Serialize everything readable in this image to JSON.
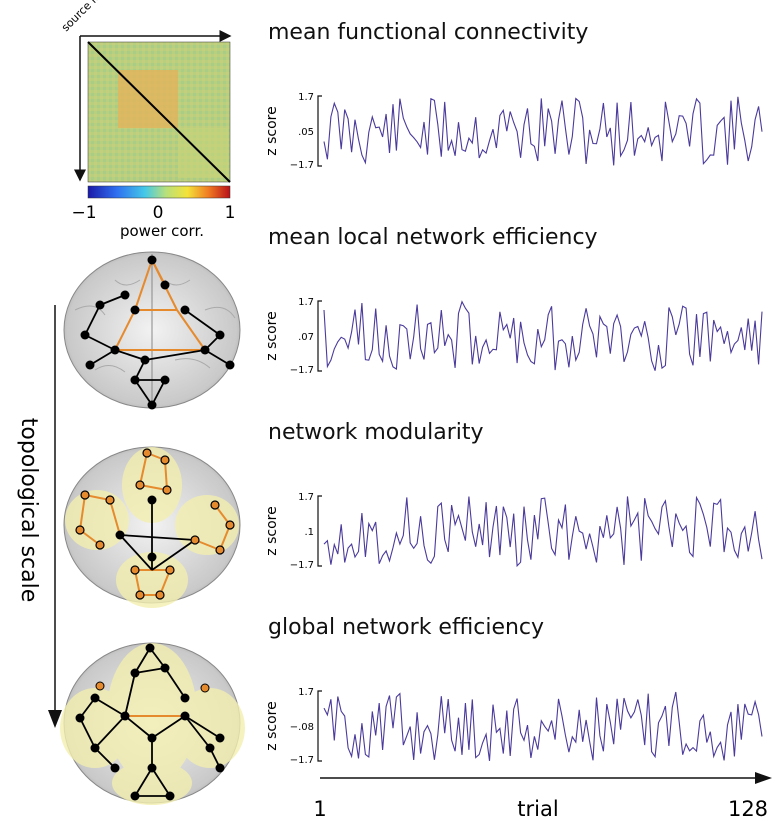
{
  "matrix": {
    "axis_label": "source locations",
    "colorbar": {
      "ticks": [
        "−1",
        "0",
        "1"
      ],
      "label": "power corr."
    },
    "colors": {
      "background": "#b3cf7a",
      "block": "#e0b75f",
      "diagonal": "#000000"
    }
  },
  "vertical_axis": {
    "label": "topological scale"
  },
  "panels": [
    {
      "title": "mean functional connectivity",
      "ylabel": "z score",
      "ticks": [
        "1.7",
        ".05",
        "−1.7"
      ]
    },
    {
      "title": "mean local network efficiency",
      "ylabel": "z score",
      "ticks": [
        "1.7",
        ".07",
        "−1.7"
      ]
    },
    {
      "title": "network modularity",
      "ylabel": "z score",
      "ticks": [
        "1.7",
        ".1",
        "−1.7"
      ]
    },
    {
      "title": "global network efficiency",
      "ylabel": "z score",
      "ticks": [
        "1.7",
        "−.08",
        "−1.7"
      ]
    }
  ],
  "trial_axis": {
    "label": "trial",
    "start": "1",
    "end": "128"
  },
  "colors": {
    "series": "#4b3a9c",
    "black_edge": "#000000",
    "orange_edge": "#e68a2e",
    "module_fill": "#f3efb0"
  },
  "chart_data": [
    {
      "type": "line",
      "title": "mean functional connectivity",
      "ylabel": "z score",
      "xlabel": "trial",
      "ylim": [
        -1.7,
        1.7
      ],
      "xlim": [
        1,
        128
      ],
      "mean": 0.05
    },
    {
      "type": "line",
      "title": "mean local network efficiency",
      "ylabel": "z score",
      "xlabel": "trial",
      "ylim": [
        -1.7,
        1.7
      ],
      "xlim": [
        1,
        128
      ],
      "mean": 0.07
    },
    {
      "type": "line",
      "title": "network modularity",
      "ylabel": "z score",
      "xlabel": "trial",
      "ylim": [
        -1.7,
        1.7
      ],
      "xlim": [
        1,
        128
      ],
      "mean": 0.1
    },
    {
      "type": "line",
      "title": "global network efficiency",
      "ylabel": "z score",
      "xlabel": "trial",
      "ylim": [
        -1.7,
        1.7
      ],
      "xlim": [
        1,
        128
      ],
      "mean": -0.08
    }
  ]
}
